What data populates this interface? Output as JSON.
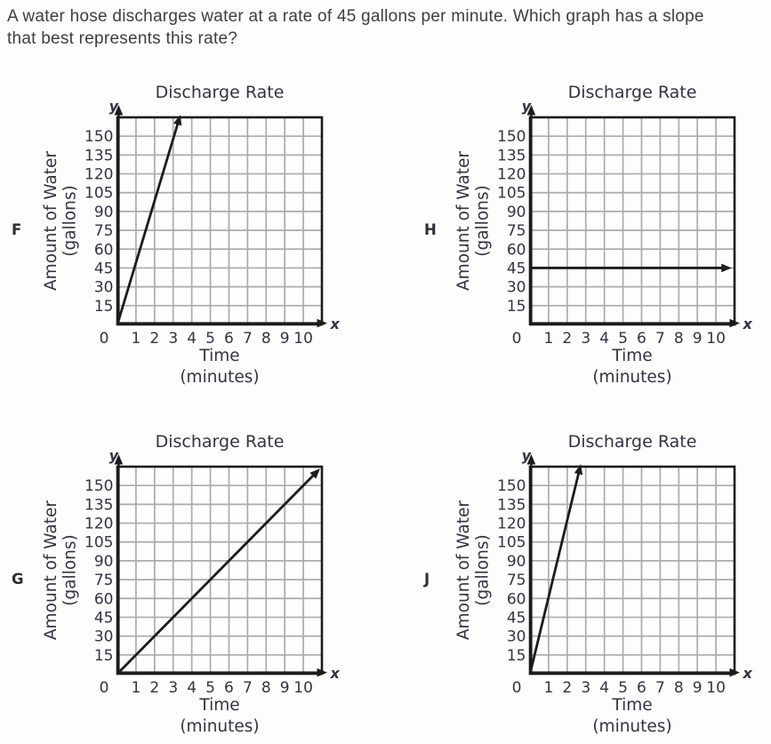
{
  "question": {
    "line1": "A water hose discharges water at a rate of 45 gallons per minute. Which graph has a slope",
    "line2": "that best represents this rate?"
  },
  "colors": {
    "background": "#fdfdfd",
    "question_text": "#3e3e40",
    "chart_text": "#333344",
    "grid_line": "#ababab",
    "axis_line": "#1c1c1c",
    "data_line": "#1c1c1c"
  },
  "chart_data": [
    {
      "option_label": "F",
      "type": "line",
      "title": "Discharge Rate",
      "xlabel": "Time (minutes)",
      "ylabel": "Amount of Water (gallons)",
      "xlabel_lines": [
        "Time",
        "(minutes)"
      ],
      "ylabel_lines": [
        "Amount of Water",
        "(gallons)"
      ],
      "x_axis_letter": "x",
      "y_axis_letter": "y",
      "x_ticks": [
        0,
        1,
        2,
        3,
        4,
        5,
        6,
        7,
        8,
        9,
        10
      ],
      "y_ticks": [
        15,
        30,
        45,
        60,
        75,
        90,
        105,
        120,
        135,
        150
      ],
      "xlim": [
        0,
        11
      ],
      "ylim": [
        0,
        165
      ],
      "grid": true,
      "line": {
        "x": [
          0,
          3.35
        ],
        "y": [
          0,
          165
        ],
        "arrow": "end",
        "approx_slope_gal_per_min": 49
      }
    },
    {
      "option_label": "H",
      "type": "line",
      "title": "Discharge Rate",
      "xlabel": "Time (minutes)",
      "ylabel": "Amount of Water (gallons)",
      "xlabel_lines": [
        "Time",
        "(minutes)"
      ],
      "ylabel_lines": [
        "Amount of Water",
        "(gallons)"
      ],
      "x_axis_letter": "x",
      "y_axis_letter": "y",
      "x_ticks": [
        0,
        1,
        2,
        3,
        4,
        5,
        6,
        7,
        8,
        9,
        10
      ],
      "y_ticks": [
        15,
        30,
        45,
        60,
        75,
        90,
        105,
        120,
        135,
        150
      ],
      "xlim": [
        0,
        11
      ],
      "ylim": [
        0,
        165
      ],
      "grid": true,
      "line": {
        "x": [
          0,
          10.7
        ],
        "y": [
          45,
          45
        ],
        "arrow": "end",
        "approx_slope_gal_per_min": 0,
        "constant_value": 45
      }
    },
    {
      "option_label": "G",
      "type": "line",
      "title": "Discharge Rate",
      "xlabel": "Time (minutes)",
      "ylabel": "Amount of Water (gallons)",
      "xlabel_lines": [
        "Time",
        "(minutes)"
      ],
      "ylabel_lines": [
        "Amount of Water",
        "(gallons)"
      ],
      "x_axis_letter": "x",
      "y_axis_letter": "y",
      "x_ticks": [
        0,
        1,
        2,
        3,
        4,
        5,
        6,
        7,
        8,
        9,
        10
      ],
      "y_ticks": [
        15,
        30,
        45,
        60,
        75,
        90,
        105,
        120,
        135,
        150
      ],
      "xlim": [
        0,
        11
      ],
      "ylim": [
        0,
        165
      ],
      "grid": true,
      "line": {
        "x": [
          0,
          10.8
        ],
        "y": [
          0,
          162
        ],
        "arrow": "end",
        "approx_slope_gal_per_min": 15
      }
    },
    {
      "option_label": "J",
      "type": "line",
      "title": "Discharge Rate",
      "xlabel": "Time (minutes)",
      "ylabel": "Amount of Water (gallons)",
      "xlabel_lines": [
        "Time",
        "(minutes)"
      ],
      "ylabel_lines": [
        "Amount of Water",
        "(gallons)"
      ],
      "x_axis_letter": "x",
      "y_axis_letter": "y",
      "x_ticks": [
        0,
        1,
        2,
        3,
        4,
        5,
        6,
        7,
        8,
        9,
        10
      ],
      "y_ticks": [
        15,
        30,
        45,
        60,
        75,
        90,
        105,
        120,
        135,
        150
      ],
      "xlim": [
        0,
        11
      ],
      "ylim": [
        0,
        165
      ],
      "grid": true,
      "line": {
        "x": [
          0,
          2.7
        ],
        "y": [
          0,
          165
        ],
        "arrow": "end",
        "approx_slope_gal_per_min": 61
      }
    }
  ]
}
